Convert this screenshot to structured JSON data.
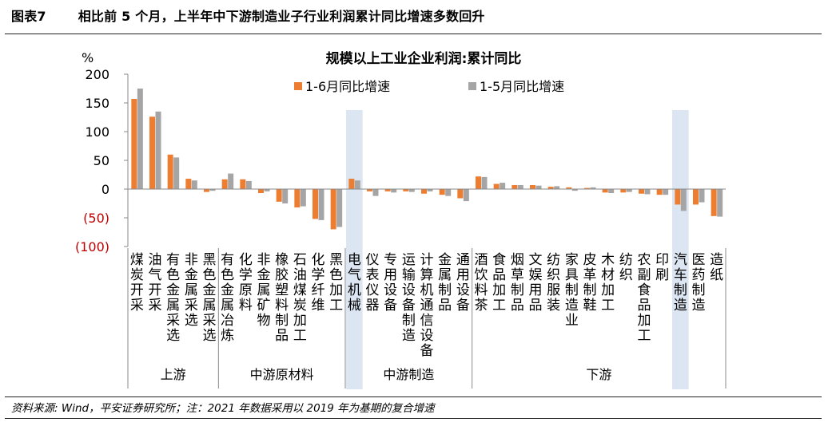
{
  "header": {
    "figure_label": "图表7",
    "title": "相比前 5 个月，上半年中下游制造业子行业利润累计同比增速多数回升"
  },
  "source": "资料来源: Wind，平安证券研究所；注：2021 年数据采用以 2019 年为基期的复合增速",
  "colors": {
    "series_1": "#ED7D31",
    "series_2": "#A5A5A5",
    "highlight": "#DCE6F2",
    "negative_tick": "#C00000"
  },
  "chart_data": {
    "type": "bar",
    "title": "规模以上工业企业利润:累计同比",
    "ylabel": "%",
    "ylim": [
      -100,
      200
    ],
    "yticks": [
      {
        "value": 200,
        "label": "200",
        "negative": false
      },
      {
        "value": 150,
        "label": "150",
        "negative": false
      },
      {
        "value": 100,
        "label": "100",
        "negative": false
      },
      {
        "value": 50,
        "label": "50",
        "negative": false
      },
      {
        "value": 0,
        "label": "0",
        "negative": false
      },
      {
        "value": -50,
        "label": "(50)",
        "negative": true
      },
      {
        "value": -100,
        "label": "(100)",
        "negative": true
      }
    ],
    "legend_position": "top",
    "categories": [
      "煤炭开采",
      "油气开采",
      "有色金属采选",
      "非金属采选",
      "黑色金属采选",
      "有色金属冶炼",
      "化学原料",
      "非金属矿物",
      "橡胶塑料制品",
      "石油煤炭加工",
      "化学纤维",
      "黑色加工",
      "电气机械",
      "仪表仪器",
      "专用设备",
      "运输设备制造",
      "计算机通信设备",
      "金属制品",
      "通用设备",
      "酒饮料茶",
      "食品加工",
      "烟草制品",
      "文娱用品",
      "纺织服装",
      "家具制造业",
      "皮革制鞋",
      "木材加工",
      "纺织",
      "农副食品加工",
      "印刷",
      "汽车制造",
      "医药制造",
      "造纸"
    ],
    "highlighted": [
      "电气机械",
      "汽车制造"
    ],
    "series": [
      {
        "name": "1-6月同比增速",
        "values": [
          157,
          126,
          60,
          18,
          -5,
          17,
          17,
          -7,
          -22,
          -32,
          -52,
          -70,
          18,
          -4,
          -4,
          -4,
          -8,
          -10,
          -16,
          22,
          9,
          7,
          7,
          4,
          3,
          2,
          -6,
          -6,
          -8,
          -10,
          -27,
          -27,
          -47
        ]
      },
      {
        "name": "1-5月同比增速",
        "values": [
          175,
          135,
          55,
          15,
          -3,
          27,
          14,
          -4,
          -25,
          -30,
          -54,
          -66,
          15,
          -12,
          -6,
          -5,
          -4,
          -12,
          -21,
          21,
          11,
          7,
          6,
          5,
          -3,
          3,
          -7,
          -5,
          -9,
          -10,
          -38,
          -23,
          -48
        ]
      }
    ],
    "groups": [
      {
        "name": "上游",
        "start": 0,
        "end": 4
      },
      {
        "name": "中游原材料",
        "start": 5,
        "end": 11
      },
      {
        "name": "中游制造",
        "start": 12,
        "end": 18
      },
      {
        "name": "下游",
        "start": 19,
        "end": 32
      }
    ]
  }
}
